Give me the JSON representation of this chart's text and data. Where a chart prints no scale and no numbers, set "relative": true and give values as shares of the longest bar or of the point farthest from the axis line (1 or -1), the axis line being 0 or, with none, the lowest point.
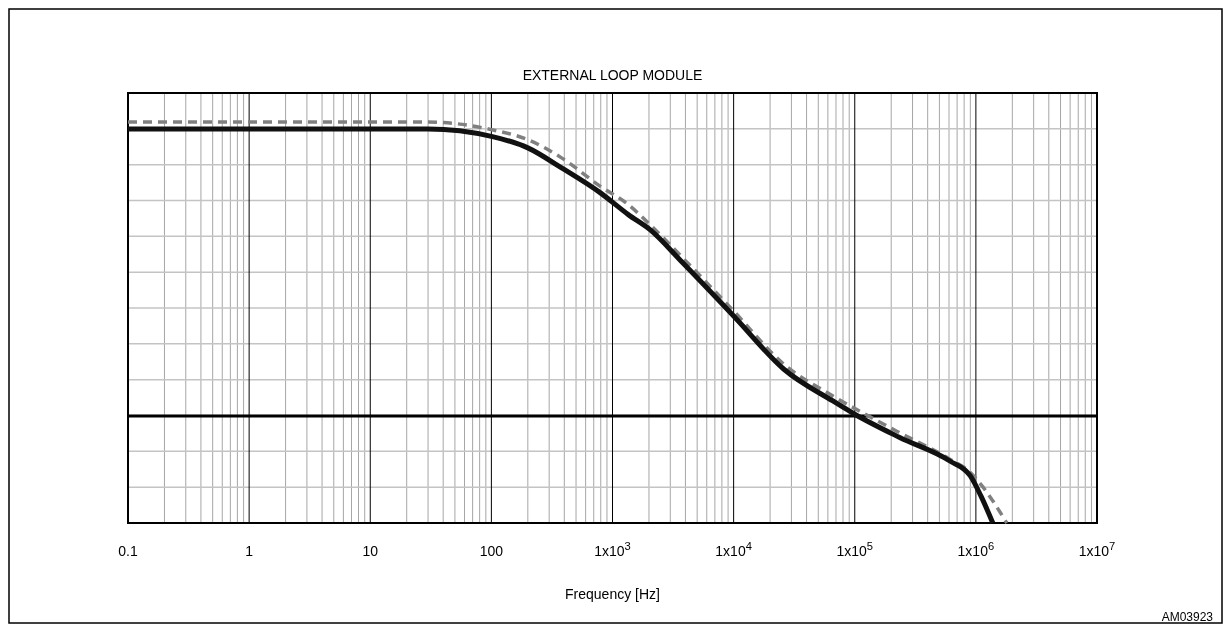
{
  "chart_data": {
    "type": "line",
    "title": "EXTERNAL LOOP MODULE",
    "xlabel": "Frequency [Hz]",
    "annotations": [
      "AM03923"
    ],
    "relative": true,
    "log": "x",
    "grid": true,
    "xlim": [
      0.1,
      10000000
    ],
    "xticks": [
      0.1,
      1,
      10,
      100,
      {
        "value": 1000,
        "label": "1x10$^{3}$"
      },
      {
        "value": 10000,
        "label": "1x10$^{4}$"
      },
      {
        "value": 100000,
        "label": "1x10$^{5}$"
      },
      {
        "value": 1000000,
        "label": "1x10$^{6}$"
      },
      {
        "value": 10000000,
        "label": "1x10$^{7}$"
      }
    ],
    "series": [
      {
        "color": "#808080",
        "line_style": "dashed",
        "x": [
          0.1,
          30,
          100,
          200,
          380,
          795,
          1350,
          2040,
          3800,
          10000,
          26000,
          66000,
          130000,
          235000,
          610000,
          900000,
          1150000,
          1800000
        ],
        "values": [
          1,
          1,
          0.974,
          0.94,
          0.878,
          0.781,
          0.719,
          0.651,
          0.538,
          0.357,
          0.176,
          0.068,
          0,
          -0.057,
          -0.147,
          -0.192,
          -0.243,
          -0.364
        ]
      },
      {
        "color": "#111111",
        "line_style": "solid",
        "x": [
          0.1,
          30,
          100,
          200,
          380,
          795,
          1350,
          2040,
          3800,
          10000,
          26000,
          66000,
          100000,
          235000,
          610000,
          900000,
          1100000,
          1380000
        ],
        "values": [
          0.976,
          0.976,
          0.951,
          0.912,
          0.844,
          0.759,
          0.685,
          0.634,
          0.521,
          0.34,
          0.159,
          0.051,
          0.006,
          -0.073,
          -0.153,
          -0.204,
          -0.272,
          -0.364
        ]
      }
    ]
  }
}
